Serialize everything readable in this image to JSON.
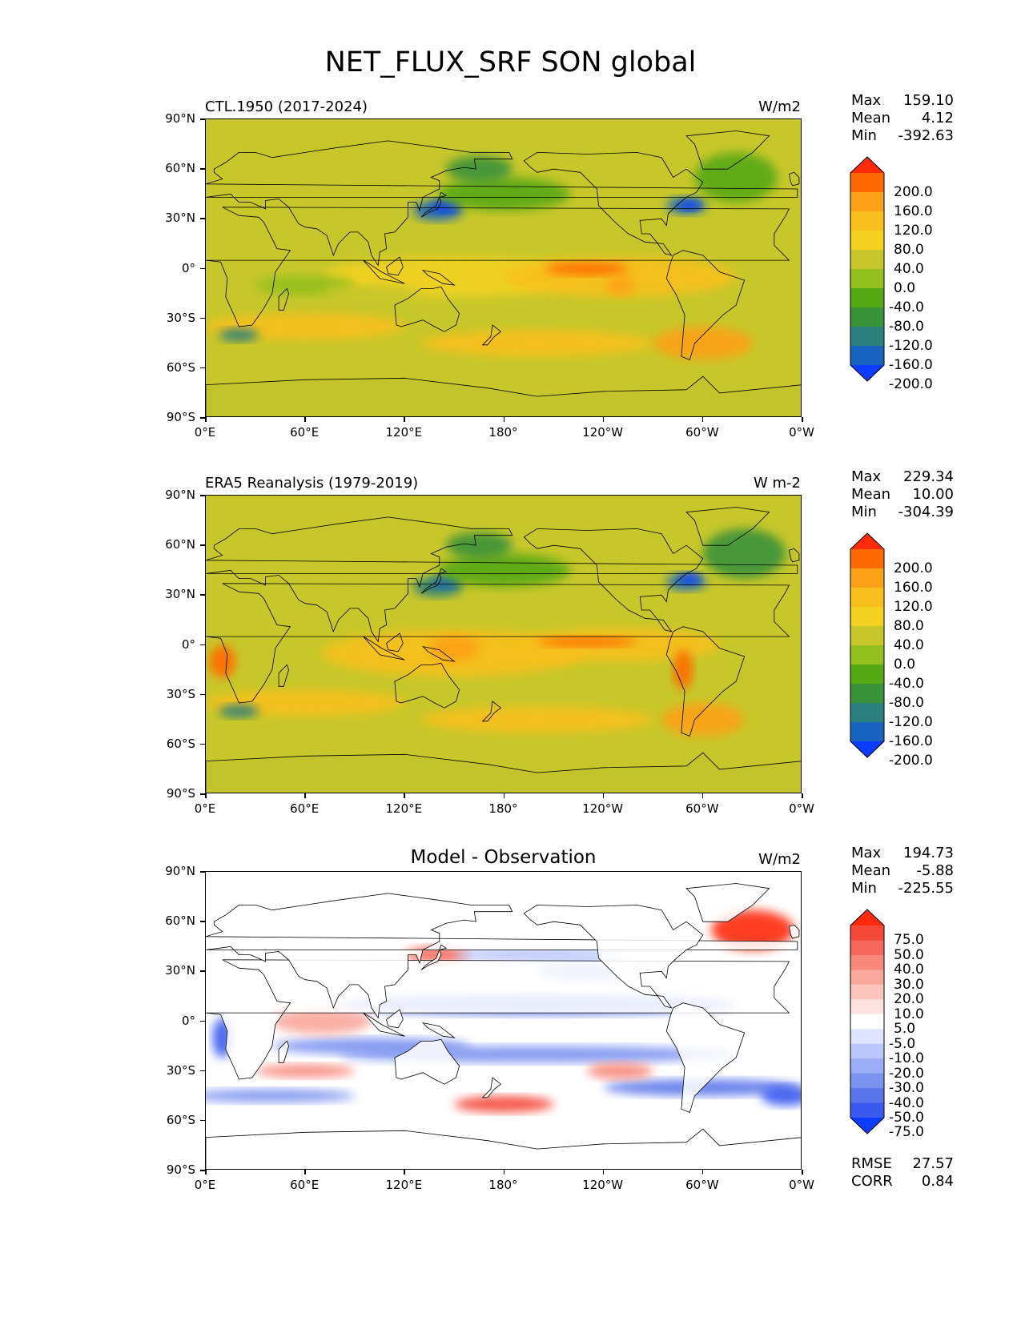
{
  "title": "NET_FLUX_SRF SON global",
  "lat_labels": [
    "90°N",
    "60°N",
    "30°N",
    "0°",
    "30°S",
    "60°S",
    "90°S"
  ],
  "lon_labels": [
    "0°E",
    "60°E",
    "120°E",
    "180°",
    "120°W",
    "60°W",
    "0°W"
  ],
  "panels": [
    {
      "title": "CTL.1950 (2017-2024)",
      "title_style": "left",
      "units": "W/m2",
      "stats": [
        {
          "label": "Max",
          "value": "159.10"
        },
        {
          "label": "Mean",
          "value": "4.12"
        },
        {
          "label": "Min",
          "value": "-392.63"
        }
      ],
      "colorbar_labels": [
        "200.0",
        "160.0",
        "120.0",
        "80.0",
        "40.0",
        "0.0",
        "-40.0",
        "-80.0",
        "-120.0",
        "-160.0",
        "-200.0"
      ],
      "colorbar_colors": [
        "#ff2a0a",
        "#ff6a00",
        "#fda119",
        "#f8c01e",
        "#f3d223",
        "#c7c72b",
        "#93bf1f",
        "#56a814",
        "#3a923a",
        "#2b7f7c",
        "#1863c0",
        "#0b3cff"
      ]
    },
    {
      "title": "ERA5 Reanalysis (1979-2019)",
      "title_style": "left",
      "units": "W m-2",
      "stats": [
        {
          "label": "Max",
          "value": "229.34"
        },
        {
          "label": "Mean",
          "value": "10.00"
        },
        {
          "label": "Min",
          "value": "-304.39"
        }
      ],
      "colorbar_labels": [
        "200.0",
        "160.0",
        "120.0",
        "80.0",
        "40.0",
        "0.0",
        "-40.0",
        "-80.0",
        "-120.0",
        "-160.0",
        "-200.0"
      ],
      "colorbar_colors": [
        "#ff2a0a",
        "#ff6a00",
        "#fda119",
        "#f8c01e",
        "#f3d223",
        "#c7c72b",
        "#93bf1f",
        "#56a814",
        "#3a923a",
        "#2b7f7c",
        "#1863c0",
        "#0b3cff"
      ]
    },
    {
      "title": "Model - Observation",
      "title_style": "center",
      "units": "W/m2",
      "stats": [
        {
          "label": "Max",
          "value": "194.73"
        },
        {
          "label": "Mean",
          "value": "-5.88"
        },
        {
          "label": "Min",
          "value": "-225.55"
        }
      ],
      "colorbar_labels": [
        "75.0",
        "50.0",
        "40.0",
        "30.0",
        "20.0",
        "10.0",
        "5.0",
        "-5.0",
        "-10.0",
        "-20.0",
        "-30.0",
        "-40.0",
        "-50.0",
        "-75.0"
      ],
      "colorbar_colors": [
        "#ff2a0a",
        "#f54a3a",
        "#f5675a",
        "#f8887c",
        "#faa79c",
        "#fcc6bf",
        "#fde3df",
        "#ffffff",
        "#dfe5ff",
        "#bcc8fb",
        "#9aadf5",
        "#7a92f0",
        "#5a76ea",
        "#3a5aef",
        "#0b3cff"
      ],
      "bottom_stats": [
        {
          "label": "RMSE",
          "value": "27.57"
        },
        {
          "label": "CORR",
          "value": "0.84"
        }
      ]
    }
  ]
}
